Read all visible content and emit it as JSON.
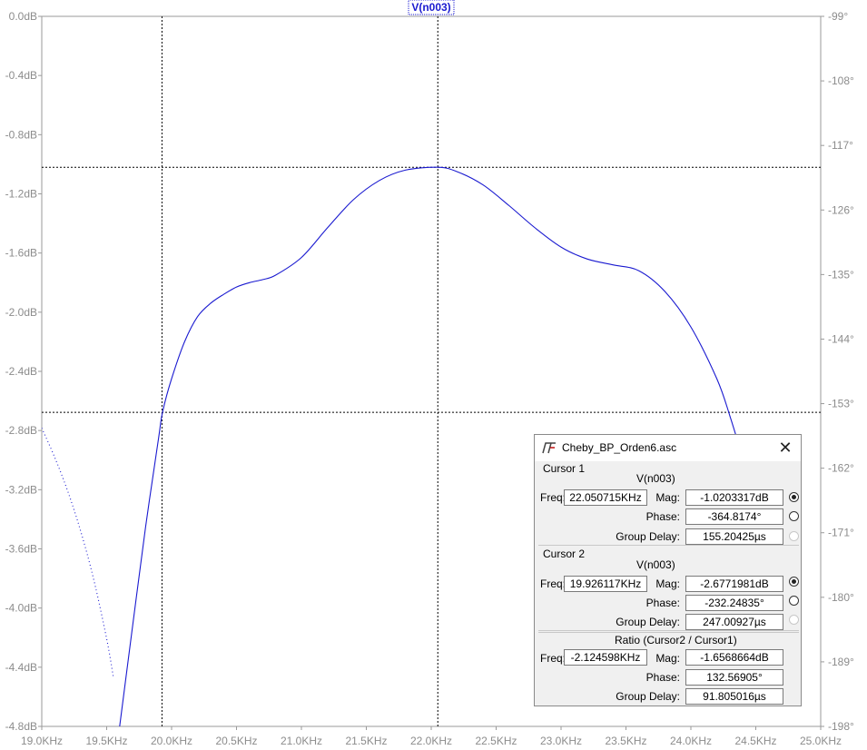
{
  "trace_label": "V(n003)",
  "chart_data": {
    "type": "line",
    "title": "",
    "xlabel": "",
    "ylabel": "",
    "x_ticks": [
      "19.0KHz",
      "19.5KHz",
      "20.0KHz",
      "20.5KHz",
      "21.0KHz",
      "21.5KHz",
      "22.0KHz",
      "22.5KHz",
      "23.0KHz",
      "23.5KHz",
      "24.0KHz",
      "24.5KHz",
      "25.0KHz"
    ],
    "y_left_ticks": [
      "0.0dB",
      "-0.4dB",
      "-0.8dB",
      "-1.2dB",
      "-1.6dB",
      "-2.0dB",
      "-2.4dB",
      "-2.8dB",
      "-3.2dB",
      "-3.6dB",
      "-4.0dB",
      "-4.4dB",
      "-4.8dB"
    ],
    "y_right_ticks": [
      "-99°",
      "-108°",
      "-117°",
      "-126°",
      "-135°",
      "-144°",
      "-153°",
      "-162°",
      "-171°",
      "-180°",
      "-189°",
      "-198°"
    ],
    "xlim_khz": [
      19.0,
      25.0
    ],
    "ylim_db": [
      -4.8,
      0.0
    ],
    "ylim_phase_deg": [
      -198,
      -99
    ],
    "grid": false,
    "series": [
      {
        "name": "V(n003)",
        "style": "solid",
        "color": "#1a1ad0",
        "axis": "magnitude",
        "x_khz": [
          19.6,
          19.7,
          19.8,
          19.9,
          19.93,
          20.0,
          20.1,
          20.2,
          20.3,
          20.4,
          20.5,
          20.6,
          20.7,
          20.8,
          21.0,
          21.2,
          21.4,
          21.6,
          21.8,
          22.05,
          22.2,
          22.4,
          22.6,
          22.8,
          23.0,
          23.2,
          23.4,
          23.6,
          23.8,
          24.0,
          24.2,
          24.3,
          24.4,
          24.5,
          24.6,
          24.7
        ],
        "y_db": [
          -4.8,
          -4.12,
          -3.45,
          -2.85,
          -2.677,
          -2.45,
          -2.2,
          -2.03,
          -1.94,
          -1.88,
          -1.83,
          -1.8,
          -1.78,
          -1.75,
          -1.63,
          -1.43,
          -1.24,
          -1.11,
          -1.04,
          -1.02,
          -1.05,
          -1.14,
          -1.28,
          -1.43,
          -1.56,
          -1.64,
          -1.68,
          -1.72,
          -1.86,
          -2.1,
          -2.45,
          -2.7,
          -3.0,
          -3.4,
          -3.85,
          -4.5
        ]
      },
      {
        "name": "V(n003) phase",
        "style": "dotted",
        "color": "#1a1ad0",
        "axis": "phase",
        "x_khz": [
          19.0,
          19.1,
          19.2,
          19.3,
          19.4,
          19.5,
          19.55
        ],
        "y_deg": [
          -156.4,
          -160.5,
          -165.2,
          -170.8,
          -177.5,
          -185.8,
          -191.0
        ]
      }
    ],
    "cursor_lines": {
      "vertical_khz": [
        19.926117,
        22.050715
      ],
      "horizontal_db": [
        -1.0203317,
        -2.6771981
      ]
    }
  },
  "dialog": {
    "title": "Cheby_BP_Orden6.asc",
    "close": "✕",
    "cursor1": {
      "group": "Cursor 1",
      "trace": "V(n003)",
      "freq_label": "Freq:",
      "freq": "22.050715KHz",
      "mag_label": "Mag:",
      "mag": "-1.0203317dB",
      "phase_label": "Phase:",
      "phase": "-364.8174°",
      "gd_label": "Group Delay:",
      "gd": "155.20425µs"
    },
    "cursor2": {
      "group": "Cursor 2",
      "trace": "V(n003)",
      "freq_label": "Freq:",
      "freq": "19.926117KHz",
      "mag_label": "Mag:",
      "mag": "-2.6771981dB",
      "phase_label": "Phase:",
      "phase": "-232.24835°",
      "gd_label": "Group Delay:",
      "gd": "247.00927µs"
    },
    "ratio": {
      "group": "Ratio (Cursor2 / Cursor1)",
      "freq_label": "Freq:",
      "freq": "-2.124598KHz",
      "mag_label": "Mag:",
      "mag": "-1.6568664dB",
      "phase_label": "Phase:",
      "phase": "132.56905°",
      "gd_label": "Group Delay:",
      "gd": "91.805016µs"
    }
  }
}
